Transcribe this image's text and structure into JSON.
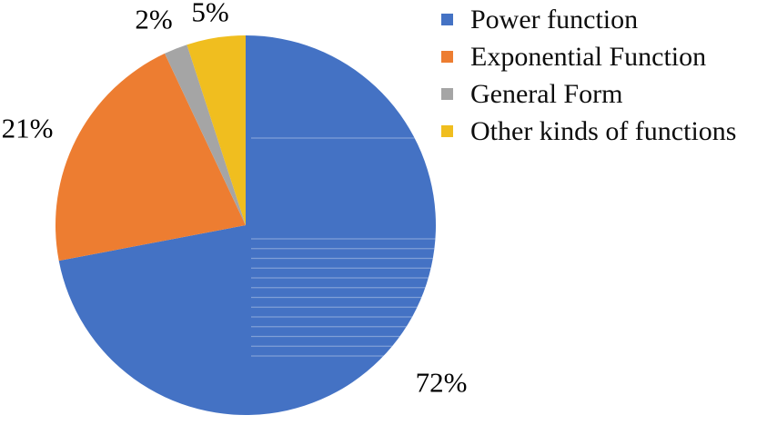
{
  "chart_data": {
    "type": "pie",
    "title": "",
    "categories": [
      "Power function",
      "Exponential Function",
      "General Form",
      "Other kinds of functions"
    ],
    "values": [
      72,
      21,
      2,
      5
    ],
    "unit": "%",
    "slices": [
      {
        "label": "Power function",
        "value": 72,
        "pct_label": "72%",
        "color": "#4472C4"
      },
      {
        "label": "Exponential Function",
        "value": 21,
        "pct_label": "21%",
        "color": "#ED7D31"
      },
      {
        "label": "General Form",
        "value": 2,
        "pct_label": "2%",
        "color": "#A5A5A5"
      },
      {
        "label": "Other kinds of functions",
        "value": 5,
        "pct_label": "5%",
        "color": "#F0BE1F"
      }
    ],
    "start_angle_deg": 0,
    "direction": "clockwise",
    "legend_position": "top-right",
    "data_labels": "outside-percent"
  }
}
